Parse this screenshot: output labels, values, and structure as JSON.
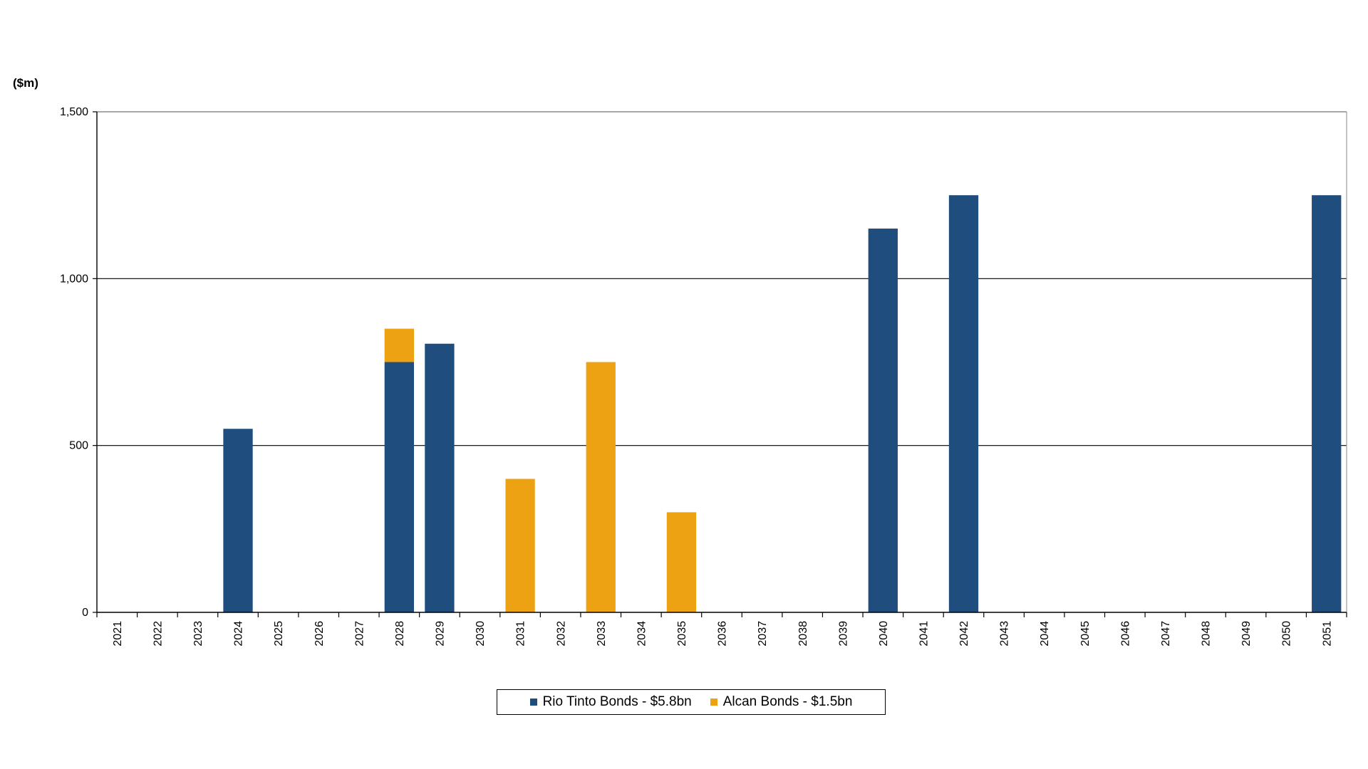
{
  "chart_data": {
    "type": "bar",
    "stacked": true,
    "y_unit_label": "($m)",
    "categories": [
      "2021",
      "2022",
      "2023",
      "2024",
      "2025",
      "2026",
      "2027",
      "2028",
      "2029",
      "2030",
      "2031",
      "2032",
      "2033",
      "2034",
      "2035",
      "2036",
      "2037",
      "2038",
      "2039",
      "2040",
      "2041",
      "2042",
      "2043",
      "2044",
      "2045",
      "2046",
      "2047",
      "2048",
      "2049",
      "2050",
      "2051"
    ],
    "series": [
      {
        "name": "Rio Tinto Bonds - $5.8bn",
        "color": "#1f4e7e",
        "values": [
          0,
          0,
          0,
          550,
          0,
          0,
          0,
          750,
          805,
          0,
          0,
          0,
          0,
          0,
          0,
          0,
          0,
          0,
          0,
          1150,
          0,
          1250,
          0,
          0,
          0,
          0,
          0,
          0,
          0,
          0,
          1250
        ]
      },
      {
        "name": "Alcan Bonds - $1.5bn",
        "color": "#eda214",
        "values": [
          0,
          0,
          0,
          0,
          0,
          0,
          0,
          100,
          0,
          0,
          400,
          0,
          750,
          0,
          300,
          0,
          0,
          0,
          0,
          0,
          0,
          0,
          0,
          0,
          0,
          0,
          0,
          0,
          0,
          0,
          0
        ]
      }
    ],
    "ylim": [
      0,
      1500
    ],
    "yticks": [
      0,
      500,
      1000,
      1500
    ],
    "ytick_labels": [
      "0",
      "500",
      "1,000",
      "1,500"
    ],
    "grid": true,
    "legend_position": "bottom-center"
  }
}
